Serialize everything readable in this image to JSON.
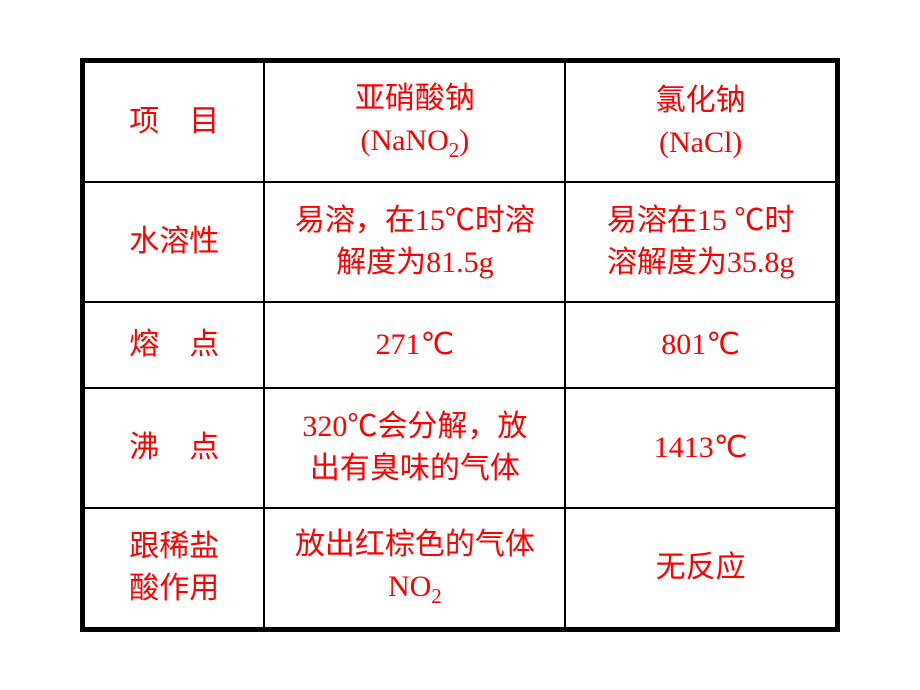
{
  "table": {
    "border_color": "#000000",
    "text_color": "#ff0000",
    "background_color": "#ffffff",
    "font_size_pt": 22,
    "columns": [
      {
        "key": "item",
        "width_pct": 24
      },
      {
        "key": "nano2",
        "width_pct": 40
      },
      {
        "key": "nacl",
        "width_pct": 36
      }
    ],
    "header": {
      "item": "项　目",
      "nano2_line1": "亚硝酸钠",
      "nano2_line2_pre": "(NaNO",
      "nano2_line2_sub": "2",
      "nano2_line2_post": ")",
      "nacl_line1": "氯化钠",
      "nacl_line2": "(NaCl)"
    },
    "rows": {
      "solubility": {
        "label": "水溶性",
        "nano2_line1": "易溶，在15℃时溶",
        "nano2_line2": "解度为81.5g",
        "nacl_line1": "易溶在15 ℃时",
        "nacl_line2": "溶解度为35.8g"
      },
      "melting": {
        "label": "熔　点",
        "nano2": "271℃",
        "nacl": "801℃"
      },
      "boiling": {
        "label": "沸　点",
        "nano2_line1": "320℃会分解，放",
        "nano2_line2": "出有臭味的气体",
        "nacl": "1413℃"
      },
      "hcl": {
        "label_line1": "跟稀盐",
        "label_line2": "酸作用",
        "nano2_line1": "放出红棕色的气体",
        "nano2_line2_pre": "NO",
        "nano2_line2_sub": "2",
        "nacl": "无反应"
      }
    }
  }
}
